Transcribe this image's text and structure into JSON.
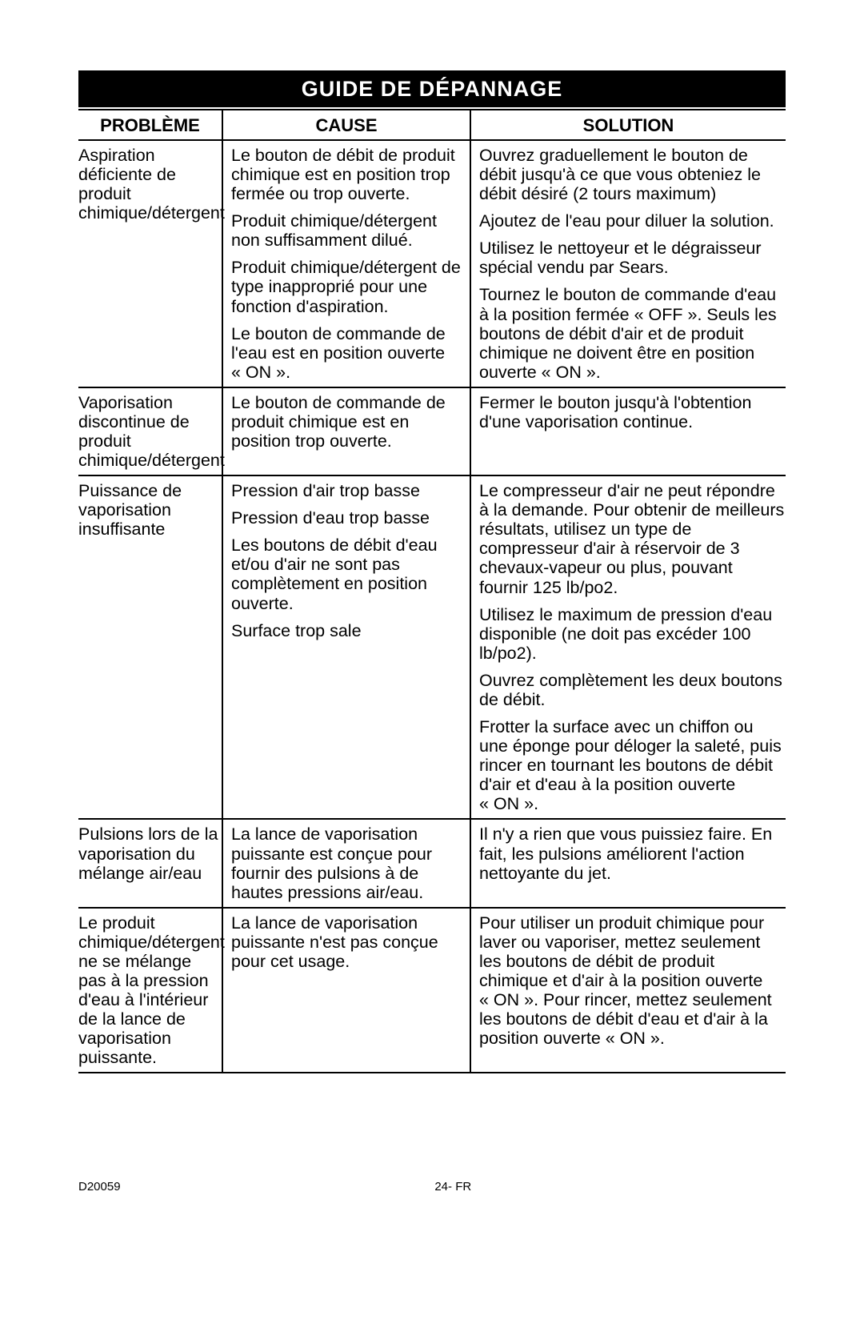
{
  "title": "GUIDE DE DÉPANNAGE",
  "columns": [
    "PROBLÈME",
    "CAUSE",
    "SOLUTION"
  ],
  "sections": [
    {
      "problem": "Aspiration déficiente de produit chimique/détergent",
      "rows": [
        {
          "cause": "Le bouton de débit de produit chimique est en position trop fermée ou trop ouverte.",
          "solution": "Ouvrez graduellement le bouton de débit jusqu'à ce que vous obteniez le débit désiré (2 tours maximum)"
        },
        {
          "cause": "Produit chimique/détergent non suffisamment dilué.",
          "solution": "Ajoutez de l'eau pour diluer la solution."
        },
        {
          "cause": "Produit chimique/détergent de type inapproprié pour une fonction d'aspiration.",
          "solution": "Utilisez le nettoyeur et le dégraisseur spécial vendu par Sears."
        },
        {
          "cause": "Le bouton de commande de l'eau est en position ouverte « ON ».",
          "solution": "Tournez le bouton de commande d'eau à la position fermée « OFF ». Seuls les boutons de débit d'air et de produit chimique ne doivent être en position ouverte « ON »."
        }
      ]
    },
    {
      "problem": "Vaporisation discontinue de produit chimique/détergent",
      "rows": [
        {
          "cause": "Le bouton de commande de produit chimique est en position trop ouverte.",
          "solution": "Fermer le bouton jusqu'à l'obtention d'une vaporisation continue."
        }
      ]
    },
    {
      "problem": "Puissance de vaporisation insuffisante",
      "rows": [
        {
          "cause": "Pression d'air trop basse",
          "solution": "Le compresseur d'air ne peut répondre à la demande. Pour obtenir de meilleurs résultats, utilisez un type de compresseur d'air à réservoir de 3 chevaux-vapeur ou plus, pouvant fournir 125 lb/po2."
        },
        {
          "cause": "Pression d'eau trop basse",
          "solution": "Utilisez le maximum de pression d'eau disponible (ne doit pas excéder 100 lb/po2)."
        },
        {
          "cause": "Les boutons de débit d'eau et/ou d'air ne sont pas complètement en position ouverte.",
          "solution": "Ouvrez complètement les deux boutons de débit."
        },
        {
          "cause": "Surface trop sale",
          "solution": "Frotter la surface avec un chiffon ou une éponge pour déloger la saleté, puis rincer en tournant les boutons de débit d'air et d'eau à la position ouverte « ON »."
        }
      ]
    },
    {
      "problem": "Pulsions lors de la vaporisation du mélange air/eau",
      "rows": [
        {
          "cause": "La lance de vaporisation puissante est conçue pour fournir des pulsions à de hautes pressions air/eau.",
          "solution": "Il n'y a rien que vous puissiez faire. En fait, les pulsions améliorent l'action nettoyante du jet."
        }
      ]
    },
    {
      "problem": "Le produit chimique/détergent ne se mélange pas à la pression d'eau à l'intérieur de la lance de vaporisation puissante.",
      "rows": [
        {
          "cause": "La lance de vaporisation puissante n'est pas conçue pour cet usage.",
          "solution": "Pour utiliser un produit chimique pour laver ou vaporiser, mettez seulement les boutons de débit de produit chimique et d'air à la position ouverte « ON ». Pour rincer, mettez seulement les boutons de débit d'eau et d'air à la position ouverte « ON »."
        }
      ]
    }
  ],
  "footer": {
    "doc_number": "D20059",
    "page_label": "24- FR"
  }
}
